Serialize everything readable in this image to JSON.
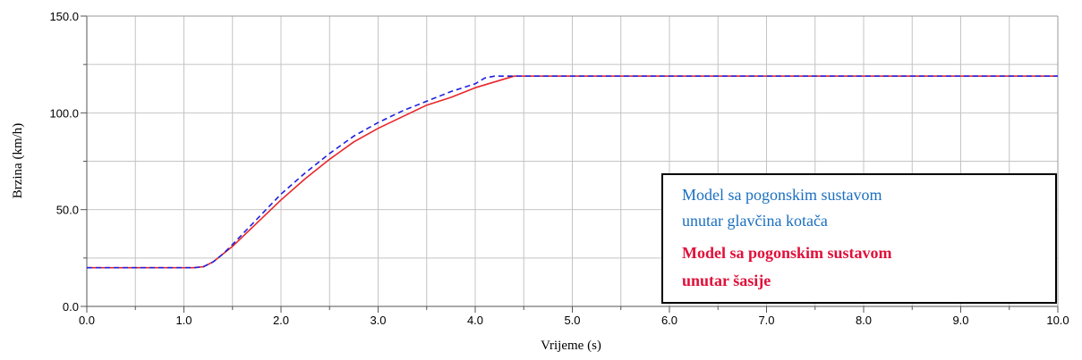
{
  "chart_data": {
    "type": "line",
    "title": "",
    "xlabel": "Vrijeme (s)",
    "ylabel": "Brzina (km/h)",
    "xlim": [
      0,
      10
    ],
    "ylim": [
      0,
      150
    ],
    "grid": true,
    "legend_position": "bottom-right",
    "x_tick_labels": [
      "0.0",
      "1.0",
      "2.0",
      "3.0",
      "4.0",
      "5.0",
      "6.0",
      "7.0",
      "8.0",
      "9.0",
      "10.0"
    ],
    "y_tick_labels": [
      "0.0",
      "50.0",
      "100.0",
      "150.0"
    ],
    "series": [
      {
        "name": "Model sa pogonskim sustavom unutar glavčina kotača",
        "legend_lines": [
          "Model sa pogonskim sustavom",
          "unutar glavčina kotača"
        ],
        "color": "#1f1fe0",
        "legend_color": "#1a6fc0",
        "style": "dashed",
        "x": [
          0,
          1.0,
          1.1,
          1.2,
          1.3,
          1.4,
          1.5,
          1.75,
          2.0,
          2.25,
          2.5,
          2.75,
          3.0,
          3.25,
          3.5,
          3.75,
          4.0,
          4.1,
          4.2,
          4.5,
          5.0,
          6.0,
          7.0,
          8.0,
          9.0,
          10.0
        ],
        "y": [
          20,
          20,
          20,
          20.5,
          23,
          27,
          32,
          45,
          58,
          69,
          79,
          88,
          95,
          101,
          106,
          111,
          115,
          118,
          119,
          119,
          119,
          119,
          119,
          119,
          119,
          119
        ]
      },
      {
        "name": "Model sa pogonskim sustavom unutar šasije",
        "legend_lines": [
          "Model sa pogonskim sustavom",
          "unutar šasije"
        ],
        "color": "#e8262a",
        "legend_color": "#e0103a",
        "style": "solid",
        "x": [
          0,
          1.0,
          1.1,
          1.2,
          1.3,
          1.4,
          1.5,
          1.75,
          2.0,
          2.25,
          2.5,
          2.75,
          3.0,
          3.25,
          3.5,
          3.75,
          4.0,
          4.2,
          4.4,
          4.5,
          5.0,
          6.0,
          7.0,
          8.0,
          9.0,
          10.0
        ],
        "y": [
          20,
          20,
          20,
          20.5,
          23,
          27,
          31,
          43,
          55,
          66,
          76,
          85,
          92,
          98,
          104,
          108,
          113,
          116,
          119,
          119,
          119,
          119,
          119,
          119,
          119,
          119
        ]
      }
    ]
  }
}
